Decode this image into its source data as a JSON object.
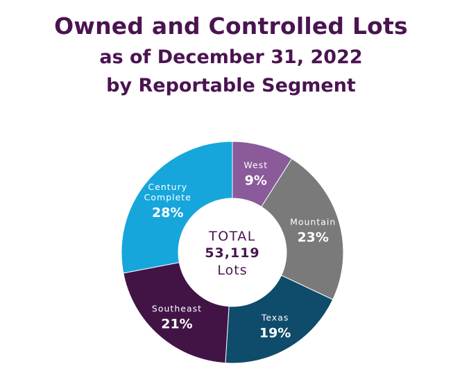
{
  "title": {
    "line1": "Owned and Controlled Lots",
    "line2": "as of December 31, 2022",
    "line3": "by Reportable Segment"
  },
  "center": {
    "label": "TOTAL",
    "value": "53,119",
    "unit": "Lots"
  },
  "colors": {
    "title": "#4a1450",
    "West": "#8a5a9a",
    "Mountain": "#7a7a7a",
    "Texas": "#0f4b6a",
    "Southeast": "#421446",
    "Century Complete": "#16a6dc"
  },
  "chart_data": {
    "type": "pie",
    "title": "Owned and Controlled Lots as of December 31, 2022 by Reportable Segment",
    "unit": "%",
    "slices": [
      {
        "label": "West",
        "value": 9,
        "label_text": "9%"
      },
      {
        "label": "Mountain",
        "value": 23,
        "label_text": "23%"
      },
      {
        "label": "Texas",
        "value": 19,
        "label_text": "19%"
      },
      {
        "label": "Southeast",
        "value": 21,
        "label_text": "21%"
      },
      {
        "label": "Century Complete",
        "value": 28,
        "label_text": "28%"
      }
    ],
    "total": 53119,
    "donut": true
  }
}
